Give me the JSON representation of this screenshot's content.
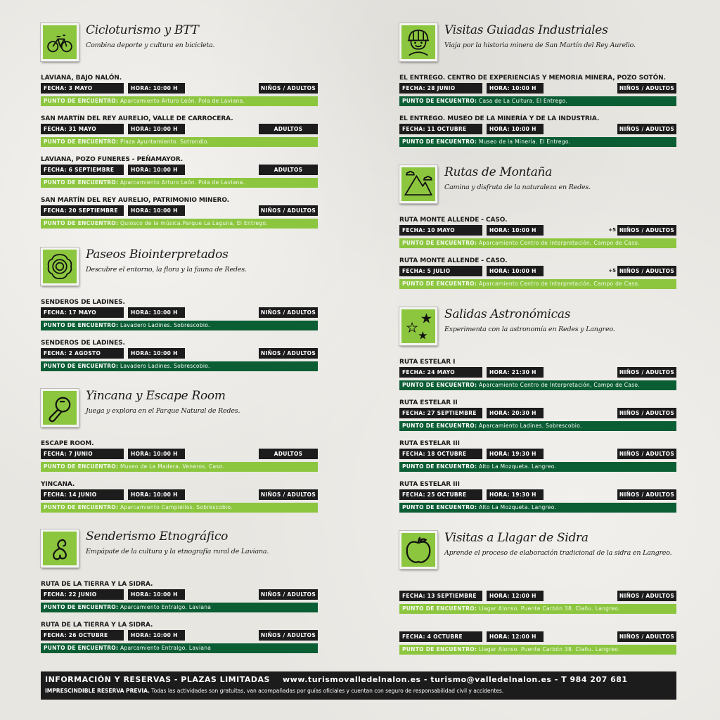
{
  "colors": {
    "light_green": "#8cc63f",
    "dark_green": "#0b5d34",
    "black": "#1c1c1c"
  },
  "sections": [
    {
      "column": "left",
      "icon": "bicycle-icon",
      "color": "light",
      "title": "Cicloturismo y BTT",
      "subtitle": "Combina deporte y cultura en bicicleta.",
      "events": [
        {
          "title": "LAVIANA, BAJO NALÓN.",
          "fecha": "FECHA: 3 MAYO",
          "hora": "HORA: 10:00 H",
          "audience": "NIÑOS / ADULTOS",
          "meeting_label": "PUNTO DE ENCUENTRO:",
          "meeting": "Aparcamiento Arturo León. Pola de Laviana."
        },
        {
          "title": "SAN MARTÍN DEL REY AURELIO, VALLE DE CARROCERA.",
          "fecha": "FECHA: 31 MAYO",
          "hora": "HORA: 10:00 H",
          "audience": "ADULTOS",
          "meeting_label": "PUNTO DE ENCUENTRO:",
          "meeting": "Plaza Ayuntamiento. Sotrondio."
        },
        {
          "title": "LAVIANA, POZO FUNERES - PEÑAMAYOR.",
          "fecha": "FECHA: 6 SEPTIEMBRE",
          "hora": "HORA: 10:00 H",
          "audience": "ADULTOS",
          "meeting_label": "PUNTO DE ENCUENTRO:",
          "meeting": "Aparcamiento Arturo León. Pola de Laviana."
        },
        {
          "title": "SAN MARTÍN DEL REY AURELIO, PATRIMONIO MINERO.",
          "fecha": "FECHA: 20 SEPTIEMBRE",
          "hora": "HORA: 10:00 H",
          "audience": "NIÑOS / ADULTOS",
          "meeting_label": "PUNTO DE ENCUENTRO:",
          "meeting": "Quiosco de la música.Parque La Laguna, El Entrego."
        }
      ]
    },
    {
      "column": "left",
      "icon": "flower-icon",
      "color": "dark",
      "title": "Paseos Biointerpretados",
      "subtitle": "Descubre el entorno, la flora y la fauna de Redes.",
      "events": [
        {
          "title": "SENDEROS DE LADINES.",
          "fecha": "FECHA: 17 MAYO",
          "hora": "HORA: 10:00 H",
          "audience": "NIÑOS / ADULTOS",
          "meeting_label": "PUNTO DE ENCUENTRO:",
          "meeting": "Lavadero Ladines. Sobrescobio."
        },
        {
          "title": "SENDEROS DE LADINES.",
          "fecha": "FECHA: 2 AGOSTO",
          "hora": "HORA: 10:00 H",
          "audience": "NIÑOS / ADULTOS",
          "meeting_label": "PUNTO DE ENCUENTRO:",
          "meeting": "Lavadero Ladines. Sobrescobio."
        }
      ]
    },
    {
      "column": "left",
      "icon": "magnifier-icon",
      "color": "light",
      "title": "Yincana y Escape Room",
      "subtitle": "Juega y explora en el Parque Natural de Redes.",
      "events": [
        {
          "title": "ESCAPE ROOM.",
          "fecha": "FECHA: 7 JUNIO",
          "hora": "HORA: 10:00 H",
          "audience": "ADULTOS",
          "meeting_label": "PUNTO DE ENCUENTRO:",
          "meeting": "Museo de La Madera. Veneros. Caso."
        },
        {
          "title": "YINCANA.",
          "fecha": "FECHA: 14 JUNIO",
          "hora": "HORA: 10:00 H",
          "audience": "NIÑOS / ADULTOS",
          "meeting_label": "PUNTO DE ENCUENTRO:",
          "meeting": "Aparcamiento Campiellos. Sobrescobio."
        }
      ]
    },
    {
      "column": "left",
      "icon": "triskelion-icon",
      "color": "dark",
      "title": "Senderismo Etnográfico",
      "subtitle": "Empápate de la cultura y la etnografía rural de Laviana.",
      "events": [
        {
          "title": "RUTA DE LA TIERRA Y LA SIDRA.",
          "fecha": "FECHA: 22 JUNIO",
          "hora": "HORA: 10:00 H",
          "audience": "NIÑOS / ADULTOS",
          "meeting_label": "PUNTO DE ENCUENTRO:",
          "meeting": "Aparcamiento Entralgo. Laviana"
        },
        {
          "title": "RUTA DE LA TIERRA Y LA SIDRA.",
          "fecha": "FECHA: 26 OCTUBRE",
          "hora": "HORA: 10:00 H",
          "audience": "NIÑOS / ADULTOS",
          "meeting_label": "PUNTO DE ENCUENTRO:",
          "meeting": "Aparcamiento Entralgo. Laviana"
        }
      ]
    },
    {
      "column": "right",
      "icon": "miner-icon",
      "color": "dark",
      "title": "Visitas Guiadas Industriales",
      "subtitle": "Viaja por la historia minera de San Martín del Rey Aurelio.",
      "events": [
        {
          "title": "EL ENTREGO. CENTRO DE EXPERIENCIAS Y MEMORIA MINERA, POZO SOTÓN.",
          "fecha": "FECHA: 28 JUNIO",
          "hora": "HORA: 10:00 H",
          "audience": "NIÑOS / ADULTOS",
          "meeting_label": "PUNTO DE ENCUENTRO:",
          "meeting": "Casa de La Cultura. El Entrego."
        },
        {
          "title": "EL ENTREGO. MUSEO DE LA MINERÍA Y DE LA INDUSTRIA.",
          "fecha": "FECHA: 11 OCTUBRE",
          "hora": "HORA: 10:00 H",
          "audience": "NIÑOS / ADULTOS",
          "meeting_label": "PUNTO DE ENCUENTRO:",
          "meeting": "Museo de la Minería. El Entrego."
        }
      ]
    },
    {
      "column": "right",
      "icon": "mountain-icon",
      "color": "light",
      "title": "Rutas de Montaña",
      "subtitle": "Camina y disfruta de la naturaleza en Redes.",
      "events": [
        {
          "title": "RUTA MONTE ALLENDE - CASO.",
          "fecha": "FECHA: 10 MAYO",
          "hora": "HORA: 10:00 H",
          "age": "+5",
          "audience": "NIÑOS / ADULTOS",
          "meeting_label": "PUNTO DE ENCUENTRO:",
          "meeting": "Aparcamiento Centro de Interpretación, Campo de Caso."
        },
        {
          "title": "RUTA MONTE ALLENDE - CASO.",
          "fecha": "FECHA: 5 JULIO",
          "hora": "HORA: 10:00 H",
          "age": "+5",
          "audience": "NIÑOS / ADULTOS",
          "meeting_label": "PUNTO DE ENCUENTRO:",
          "meeting": "Aparcamiento Centro de Interpretación, Campo de Caso."
        }
      ]
    },
    {
      "column": "right",
      "icon": "stars-icon",
      "color": "dark",
      "title": "Salidas Astronómicas",
      "subtitle": "Experimenta con la astronomía en Redes y Langreo.",
      "events": [
        {
          "title": "RUTA ESTELAR I",
          "fecha": "FECHA: 24 MAYO",
          "hora": "HORA: 21:30 H",
          "audience": "NIÑOS / ADULTOS",
          "meeting_label": "PUNTO DE ENCUENTRO:",
          "meeting": "Aparcamiento Centro de Interpretación, Campo de Caso."
        },
        {
          "title": "RUTA ESTELAR II",
          "fecha": "FECHA: 27 SEPTIEMBRE",
          "hora": "HORA: 20:30 H",
          "audience": "NIÑOS / ADULTOS",
          "meeting_label": "PUNTO DE ENCUENTRO:",
          "meeting": "Aparcamiento Ladines. Sobrescobio."
        },
        {
          "title": "RUTA ESTELAR III",
          "fecha": "FECHA: 18 OCTUBRE",
          "hora": "HORA: 19:30 H",
          "audience": "NIÑOS / ADULTOS",
          "meeting_label": "PUNTO DE ENCUENTRO:",
          "meeting": "Alto La Mozqueta. Langreo."
        },
        {
          "title": "RUTA ESTELAR III",
          "fecha": "FECHA: 25 OCTUBRE",
          "hora": "HORA: 19:30 H",
          "audience": "NIÑOS / ADULTOS",
          "meeting_label": "PUNTO DE ENCUENTRO:",
          "meeting": "Alto La Mozqueta. Langreo."
        }
      ]
    },
    {
      "column": "right",
      "icon": "apple-icon",
      "color": "light",
      "title": "Visitas a Llagar de Sidra",
      "subtitle": "Aprende el proceso de elaboración tradicional de la sidra en Langreo.",
      "events": [
        {
          "title": "",
          "fecha": "FECHA: 13 SEPTIEMBRE",
          "hora": "HORA: 12:00 H",
          "audience": "NIÑOS / ADULTOS",
          "meeting_label": "PUNTO DE ENCUENTRO:",
          "meeting": "Llagar Alonso. Puente Carbón 38. Ciañu. Langreo."
        },
        {
          "title": "",
          "fecha": "FECHA: 4 OCTUBRE",
          "hora": "HORA: 12:00 H",
          "audience": "NIÑOS / ADULTOS",
          "meeting_label": "PUNTO DE ENCUENTRO:",
          "meeting": "Llagar Alonso. Puente Carbón 38. Ciañu. Langreo."
        }
      ]
    }
  ],
  "footer": {
    "heading": "INFORMACIÓN Y RESERVAS - PLAZAS LIMITADAS",
    "contact": "www.turismovalledelnalon.es - turismo@valledelnalon.es - T 984 207 681",
    "note_bold": "IMPRESCINDIBLE RESERVA PREVIA.",
    "note": " Todas las actividades son gratuitas, van acompañadas por guías oficiales y cuentan con seguro de responsabilidad civil y accidentes."
  }
}
